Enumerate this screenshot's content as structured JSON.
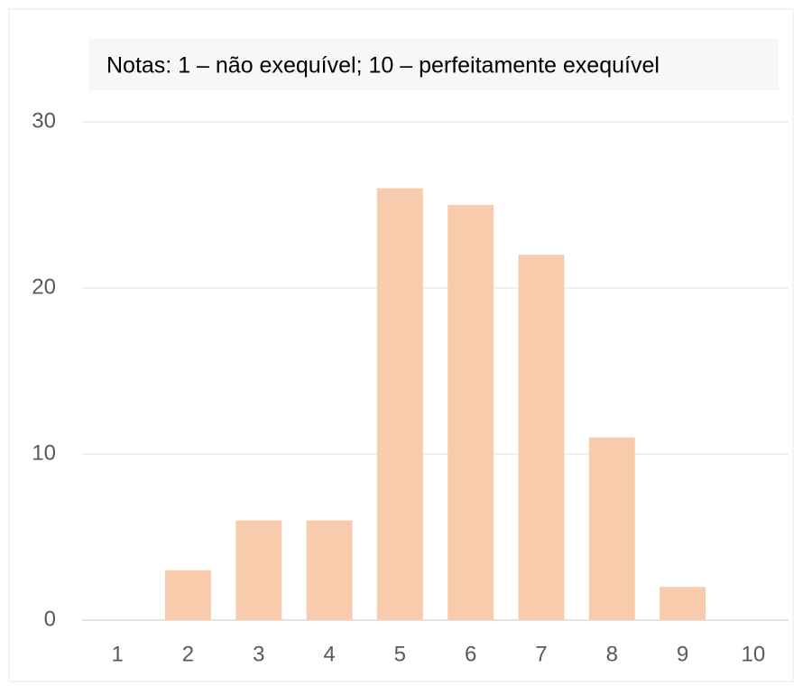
{
  "chart_data": {
    "type": "bar",
    "annotation": "Notas: 1 – não exequível; 10 – perfeitamente exequível",
    "categories": [
      "1",
      "2",
      "3",
      "4",
      "5",
      "6",
      "7",
      "8",
      "9",
      "10"
    ],
    "values": [
      0,
      3,
      6,
      6,
      26,
      25,
      22,
      11,
      2,
      0
    ],
    "color": "#f8cbad",
    "ylim": [
      0,
      30
    ],
    "yticks": [
      0,
      10,
      20,
      30
    ],
    "grid": true
  }
}
